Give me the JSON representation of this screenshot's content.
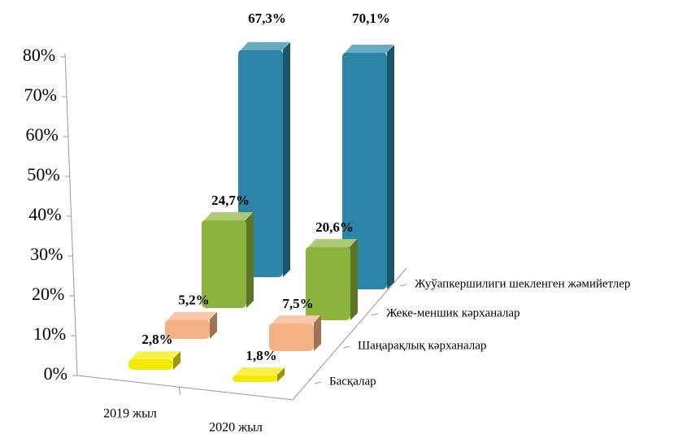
{
  "chart_data": {
    "type": "bar3d",
    "categories": [
      "2019 жыл",
      "2020 жыл"
    ],
    "series": [
      {
        "name": "Басқалар",
        "color": "#f2ea00",
        "values": [
          2.8,
          1.8
        ],
        "value_labels": [
          "2,8%",
          "1,8%"
        ]
      },
      {
        "name": "Шаңарақлық кәрханалар",
        "color": "#f4b184",
        "values": [
          5.2,
          7.5
        ],
        "value_labels": [
          "5,2%",
          "7,5%"
        ]
      },
      {
        "name": "Жеке-меншик кәрханалар",
        "color": "#8cb33c",
        "values": [
          24.7,
          20.6
        ],
        "value_labels": [
          "24,7%",
          "20,6%"
        ]
      },
      {
        "name": "Жуўапкершилиги шекленген жәмийетлер",
        "color": "#2a85a6",
        "values": [
          67.3,
          70.1
        ],
        "value_labels": [
          "67,3%",
          "70,1%"
        ]
      }
    ],
    "ylim": [
      0,
      80
    ],
    "yticks": [
      {
        "value": 0,
        "label": "0%"
      },
      {
        "value": 10,
        "label": "10%"
      },
      {
        "value": 20,
        "label": "20%"
      },
      {
        "value": 30,
        "label": "30%"
      },
      {
        "value": 40,
        "label": "40%"
      },
      {
        "value": 50,
        "label": "50%"
      },
      {
        "value": 60,
        "label": "60%"
      },
      {
        "value": 70,
        "label": "70%"
      },
      {
        "value": 80,
        "label": "80%"
      }
    ]
  }
}
